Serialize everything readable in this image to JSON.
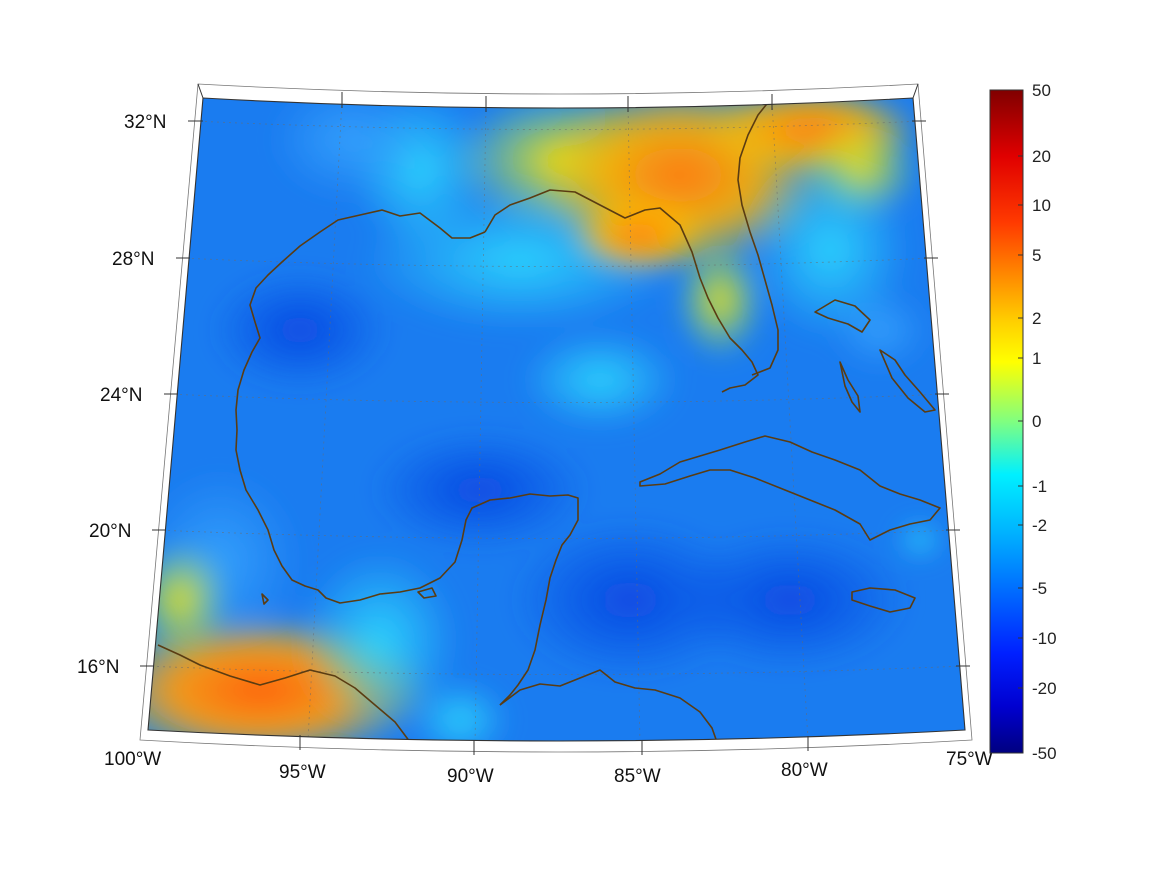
{
  "map": {
    "lon_labels": [
      "100°W",
      "95°W",
      "90°W",
      "85°W",
      "80°W",
      "75°W"
    ],
    "lat_labels": [
      "32°N",
      "28°N",
      "24°N",
      "20°N",
      "16°N"
    ],
    "region": "Gulf of Mexico and Caribbean",
    "projection": "conic",
    "extent": {
      "lon_min": -100,
      "lon_max": -75,
      "lat_min": 14,
      "lat_max": 33
    },
    "grid": true
  },
  "colorbar": {
    "tick_labels": [
      "50",
      "20",
      "10",
      "5",
      "2",
      "1",
      "0",
      "-1",
      "-2",
      "-5",
      "-10",
      "-20",
      "-50"
    ],
    "colormap": "jet",
    "colors": {
      "top": "#800000",
      "red": "#ff0000",
      "orange": "#ff8000",
      "yellow": "#ffff00",
      "green": "#80ff80",
      "cyan": "#00ffff",
      "blue": "#0080ff",
      "deep_blue": "#0000ff",
      "bottom": "#000080"
    }
  },
  "colors": {
    "coastline": "#5a3c12",
    "ocean_field": "#1a7cf0",
    "land_warm": "#ff9b18"
  }
}
